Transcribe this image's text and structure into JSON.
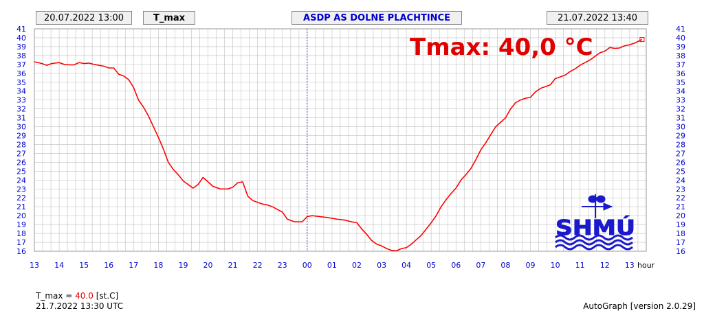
{
  "header": {
    "start_time": "20.07.2022 13:00",
    "parameter": "T_max",
    "station": "ASDP AS DOLNE PLACHTINCE",
    "end_time": "21.07.2022 13:40"
  },
  "overlay": {
    "tmax_text": "Tmax: 40,0 °C"
  },
  "logo": {
    "text": "SHMÚ"
  },
  "footer": {
    "value_label": "T_max = ",
    "value": "40.0",
    "unit": " [st.C]",
    "timestamp": "21.7.2022 13:30 UTC",
    "version": "AutoGraph [version 2.0.29]"
  },
  "colors": {
    "series": "#ff0000",
    "axis_text": "#0000cc",
    "grid": "#c8c8c8",
    "title_overlay": "#e00000"
  },
  "chart_data": {
    "type": "line",
    "xlabel": "hour",
    "ylim": [
      16,
      41
    ],
    "xlim": [
      13,
      37.67
    ],
    "x_tick_labels": [
      "13",
      "14",
      "15",
      "16",
      "17",
      "18",
      "19",
      "20",
      "21",
      "22",
      "23",
      "00",
      "01",
      "02",
      "03",
      "04",
      "05",
      "06",
      "07",
      "08",
      "09",
      "10",
      "11",
      "12",
      "13"
    ],
    "y_ticks": [
      16,
      17,
      18,
      19,
      20,
      21,
      22,
      23,
      24,
      25,
      26,
      27,
      28,
      29,
      30,
      31,
      32,
      33,
      34,
      35,
      36,
      37,
      38,
      39,
      40,
      41
    ],
    "series": [
      {
        "x": [
          13,
          13.3,
          13.5,
          13.7,
          14,
          14.2,
          14.4,
          14.6,
          14.8,
          15,
          15.2,
          15.4,
          15.6,
          15.8,
          16,
          16.2,
          16.4,
          16.6,
          16.8,
          17,
          17.2,
          17.4,
          17.6,
          17.8,
          18,
          18.2,
          18.4,
          18.6,
          18.8,
          19,
          19.2,
          19.4,
          19.6,
          19.8,
          20,
          20.2,
          20.5,
          20.8,
          21,
          21.2,
          21.4,
          21.6,
          21.8,
          22,
          22.2,
          22.4,
          22.6,
          22.8,
          23,
          23.2,
          23.5,
          23.8,
          24,
          24.2,
          24.5,
          24.8,
          25,
          25.2,
          25.5,
          25.8,
          26,
          26.2,
          26.4,
          26.6,
          26.8,
          27,
          27.2,
          27.4,
          27.6,
          27.8,
          28,
          28.2,
          28.4,
          28.6,
          28.8,
          29,
          29.2,
          29.4,
          29.6,
          29.8,
          30,
          30.2,
          30.4,
          30.6,
          30.8,
          31,
          31.2,
          31.4,
          31.6,
          31.8,
          32,
          32.2,
          32.4,
          32.6,
          32.8,
          33,
          33.2,
          33.4,
          33.6,
          33.8,
          34,
          34.2,
          34.4,
          34.6,
          34.8,
          35,
          35.2,
          35.4,
          35.6,
          35.8,
          36,
          36.2,
          36.4,
          36.6,
          36.8,
          37,
          37.2,
          37.5
        ],
        "values": [
          37.3,
          37.1,
          36.9,
          37.1,
          37.2,
          37.0,
          36.95,
          36.95,
          37.2,
          37.1,
          37.15,
          37.0,
          36.9,
          36.8,
          36.6,
          36.6,
          35.9,
          35.7,
          35.3,
          34.4,
          33.0,
          32.2,
          31.2,
          30.0,
          28.8,
          27.5,
          26.0,
          25.2,
          24.6,
          23.9,
          23.5,
          23.1,
          23.5,
          24.3,
          23.8,
          23.3,
          23.0,
          23.0,
          23.2,
          23.7,
          23.8,
          22.2,
          21.7,
          21.5,
          21.3,
          21.2,
          21.0,
          20.7,
          20.4,
          19.6,
          19.3,
          19.3,
          19.9,
          20.0,
          19.9,
          19.8,
          19.7,
          19.6,
          19.5,
          19.3,
          19.2,
          18.5,
          17.9,
          17.2,
          16.8,
          16.6,
          16.3,
          16.1,
          16.05,
          16.3,
          16.4,
          16.8,
          17.3,
          17.8,
          18.5,
          19.2,
          20.0,
          21.0,
          21.8,
          22.5,
          23.1,
          24.0,
          24.6,
          25.3,
          26.3,
          27.4,
          28.2,
          29.1,
          30.0,
          30.5,
          31.0,
          32.0,
          32.7,
          33.0,
          33.2,
          33.3,
          33.9,
          34.3,
          34.5,
          34.7,
          35.4,
          35.6,
          35.8,
          36.2,
          36.5,
          36.9,
          37.2,
          37.5,
          37.9,
          38.3,
          38.5,
          38.9,
          38.8,
          38.85,
          39.1,
          39.2,
          39.4,
          39.8
        ]
      }
    ]
  }
}
